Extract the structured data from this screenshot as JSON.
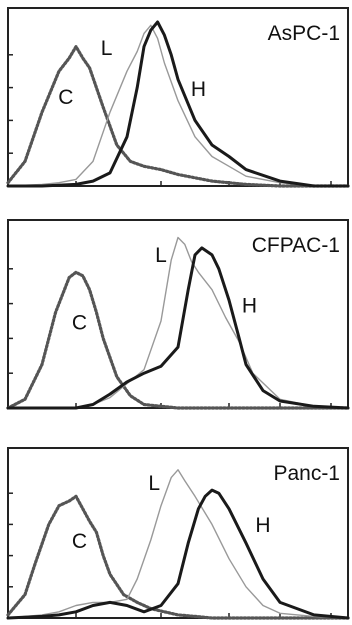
{
  "chart_data": [
    {
      "type": "line",
      "title": "AsPC-1",
      "xlabel": "",
      "ylabel": "",
      "grid": false,
      "xlim": [
        0,
        100
      ],
      "ylim": [
        0,
        100
      ],
      "x_ticks": [
        20,
        45,
        65,
        80,
        95
      ],
      "y_ticks": [
        0,
        20,
        40,
        60,
        80
      ],
      "series": [
        {
          "name": "C",
          "style": "dotted",
          "color": "#555555",
          "x": [
            0,
            5,
            10,
            15,
            18,
            20,
            22,
            24,
            28,
            32,
            36,
            40,
            45,
            50,
            55,
            60,
            70,
            80,
            100
          ],
          "y": [
            2,
            15,
            45,
            70,
            78,
            85,
            78,
            72,
            48,
            25,
            15,
            12,
            10,
            7,
            5,
            3,
            1,
            0,
            0
          ]
        },
        {
          "name": "L",
          "style": "thin",
          "color": "#999999",
          "x": [
            0,
            10,
            15,
            20,
            25,
            30,
            35,
            38,
            40,
            42,
            44,
            46,
            50,
            55,
            60,
            65,
            70,
            80,
            90,
            100
          ],
          "y": [
            0,
            1,
            2,
            4,
            15,
            45,
            70,
            82,
            93,
            98,
            90,
            75,
            52,
            30,
            18,
            12,
            6,
            2,
            0,
            0
          ]
        },
        {
          "name": "H",
          "style": "thick",
          "color": "#1a1a1a",
          "x": [
            0,
            10,
            20,
            25,
            30,
            35,
            38,
            40,
            42,
            44,
            46,
            48,
            50,
            55,
            60,
            65,
            70,
            80,
            90,
            100
          ],
          "y": [
            0,
            0,
            1,
            3,
            8,
            30,
            60,
            85,
            95,
            100,
            92,
            80,
            65,
            40,
            25,
            18,
            10,
            3,
            0,
            0
          ]
        }
      ],
      "annotations": [
        {
          "text": "C",
          "x": 17,
          "y": 50
        },
        {
          "text": "L",
          "x": 29,
          "y": 80
        },
        {
          "text": "H",
          "x": 56,
          "y": 55
        }
      ]
    },
    {
      "type": "line",
      "title": "CFPAC-1",
      "xlabel": "",
      "ylabel": "",
      "grid": false,
      "xlim": [
        0,
        100
      ],
      "ylim": [
        0,
        100
      ],
      "x_ticks": [
        20,
        45,
        65,
        80,
        95
      ],
      "y_ticks": [
        0,
        20,
        40,
        60,
        80
      ],
      "series": [
        {
          "name": "C",
          "style": "dotted",
          "color": "#555555",
          "x": [
            0,
            5,
            10,
            14,
            18,
            20,
            22,
            24,
            26,
            28,
            32,
            36,
            40,
            45,
            50,
            60,
            100
          ],
          "y": [
            0,
            5,
            25,
            55,
            75,
            78,
            76,
            68,
            55,
            40,
            18,
            7,
            2,
            1,
            0,
            0,
            0
          ]
        },
        {
          "name": "L",
          "style": "thin",
          "color": "#999999",
          "x": [
            0,
            20,
            25,
            30,
            35,
            40,
            45,
            48,
            50,
            52,
            54,
            56,
            60,
            64,
            68,
            72,
            80,
            90,
            100
          ],
          "y": [
            0,
            0,
            2,
            6,
            14,
            22,
            50,
            85,
            98,
            94,
            84,
            78,
            68,
            52,
            38,
            20,
            5,
            1,
            0
          ]
        },
        {
          "name": "H",
          "style": "thick",
          "color": "#1a1a1a",
          "x": [
            0,
            20,
            25,
            30,
            35,
            40,
            45,
            50,
            53,
            55,
            57,
            60,
            62,
            65,
            68,
            70,
            75,
            80,
            90,
            100
          ],
          "y": [
            0,
            0,
            2,
            8,
            15,
            20,
            24,
            35,
            68,
            88,
            92,
            88,
            80,
            62,
            40,
            25,
            10,
            4,
            1,
            0
          ]
        }
      ],
      "annotations": [
        {
          "text": "C",
          "x": 21,
          "y": 45
        },
        {
          "text": "L",
          "x": 45,
          "y": 84
        },
        {
          "text": "H",
          "x": 71,
          "y": 55
        }
      ]
    },
    {
      "type": "line",
      "title": "Panc-1",
      "xlabel": "",
      "ylabel": "",
      "grid": false,
      "xlim": [
        0,
        100
      ],
      "ylim": [
        0,
        100
      ],
      "x_ticks": [
        20,
        45,
        65,
        80,
        95
      ],
      "y_ticks": [
        0,
        20,
        40,
        60,
        80
      ],
      "series": [
        {
          "name": "C",
          "style": "dotted",
          "color": "#555555",
          "x": [
            0,
            5,
            8,
            12,
            15,
            18,
            20,
            22,
            24,
            26,
            28,
            30,
            34,
            38,
            42,
            46,
            50,
            55,
            60,
            100
          ],
          "y": [
            2,
            15,
            35,
            60,
            72,
            75,
            78,
            70,
            62,
            55,
            40,
            28,
            15,
            10,
            6,
            4,
            2,
            1,
            0,
            0
          ]
        },
        {
          "name": "L",
          "style": "thin",
          "color": "#999999",
          "x": [
            0,
            10,
            15,
            20,
            25,
            30,
            35,
            38,
            42,
            45,
            48,
            50,
            52,
            55,
            60,
            65,
            70,
            75,
            80,
            90,
            100
          ],
          "y": [
            0,
            2,
            4,
            8,
            10,
            10,
            12,
            25,
            50,
            72,
            90,
            95,
            88,
            78,
            60,
            38,
            20,
            8,
            3,
            1,
            0
          ]
        },
        {
          "name": "H",
          "style": "thick",
          "color": "#1a1a1a",
          "x": [
            0,
            10,
            15,
            20,
            25,
            30,
            35,
            40,
            45,
            50,
            53,
            56,
            58,
            60,
            62,
            65,
            70,
            75,
            80,
            90,
            100
          ],
          "y": [
            0,
            1,
            2,
            4,
            8,
            10,
            8,
            4,
            8,
            22,
            48,
            70,
            78,
            82,
            80,
            70,
            48,
            25,
            10,
            2,
            0
          ]
        }
      ],
      "annotations": [
        {
          "text": "C",
          "x": 21,
          "y": 45
        },
        {
          "text": "L",
          "x": 43,
          "y": 82
        },
        {
          "text": "H",
          "x": 75,
          "y": 55
        }
      ]
    }
  ]
}
